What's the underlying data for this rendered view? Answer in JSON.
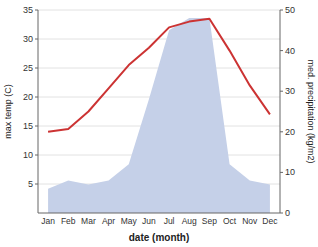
{
  "chart_data": {
    "type": "line",
    "xlabel": "date (month)",
    "ylabel": "max temp (C)",
    "y2label": "med. precipitation (kg/m2)",
    "categories": [
      "Jan",
      "Feb",
      "Mar",
      "Apr",
      "May",
      "Jun",
      "Jul",
      "Aug",
      "Sep",
      "Oct",
      "Nov",
      "Dec"
    ],
    "series": [
      {
        "type": "area",
        "axis": "y2",
        "color": "#c5d0e8",
        "values": [
          6,
          8,
          7,
          8,
          12,
          28,
          45,
          48,
          48,
          12,
          8,
          7
        ]
      },
      {
        "type": "line",
        "color": "#cc3333",
        "values": [
          14.0,
          14.5,
          17.5,
          21.5,
          25.5,
          28.5,
          32.0,
          33.0,
          33.5,
          28.0,
          22.0,
          17.0
        ]
      }
    ],
    "ylim": [
      0,
      35
    ],
    "yticks": [
      5,
      10,
      15,
      20,
      25,
      30,
      35
    ],
    "y2lim": [
      0,
      50
    ],
    "y2ticks": [
      0,
      10,
      20,
      30,
      40,
      50
    ],
    "grid": true
  }
}
